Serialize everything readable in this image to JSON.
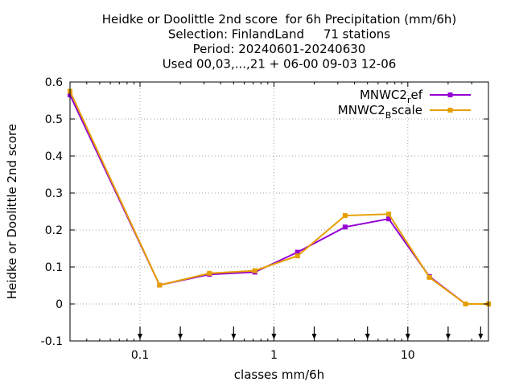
{
  "chart_data": {
    "type": "line",
    "title_lines": [
      "Heidke or Doolittle 2nd score  for 6h Precipitation (mm/6h)",
      "Selection: FinlandLand     71 stations",
      "Period: 20240601-20240630",
      "Used 00,03,...,21 + 06-00 09-03 12-06"
    ],
    "xlabel": "classes mm/6h",
    "ylabel": "Heidke or Doolittle 2nd score",
    "x_scale": "log",
    "xlim": [
      0.03,
      40
    ],
    "ylim": [
      -0.1,
      0.6
    ],
    "x_ticks": [
      0.1,
      1,
      10
    ],
    "x_tick_labels": [
      "0.1",
      "1",
      "10"
    ],
    "y_ticks": [
      -0.1,
      0,
      0.1,
      0.2,
      0.3,
      0.4,
      0.5,
      0.6
    ],
    "y_tick_labels": [
      "-0.1",
      "0",
      "0.1",
      "0.2",
      "0.3",
      "0.4",
      "0.5",
      "0.6"
    ],
    "grid": true,
    "legend_position": "top-right",
    "threshold_arrows_x": [
      0.1,
      0.2,
      0.5,
      1,
      2,
      5,
      10,
      20,
      35
    ],
    "series": [
      {
        "name": "MNWC2_ref",
        "legend_main": "MNWC2",
        "legend_sub": "r",
        "legend_rest": "ef",
        "color": "#9400d3",
        "x": [
          0.03,
          0.14,
          0.33,
          0.72,
          1.5,
          3.4,
          7.2,
          14.5,
          27,
          40
        ],
        "y": [
          0.565,
          0.051,
          0.08,
          0.086,
          0.14,
          0.208,
          0.23,
          0.074,
          0.0,
          0.0
        ]
      },
      {
        "name": "MNWC2_Bscale",
        "legend_main": "MNWC2",
        "legend_sub": "B",
        "legend_rest": "scale",
        "color": "#e69f00",
        "x": [
          0.03,
          0.14,
          0.33,
          0.72,
          1.5,
          3.4,
          7.2,
          14.5,
          27,
          40
        ],
        "y": [
          0.575,
          0.051,
          0.083,
          0.09,
          0.13,
          0.239,
          0.243,
          0.072,
          0.0,
          0.0
        ]
      }
    ]
  }
}
